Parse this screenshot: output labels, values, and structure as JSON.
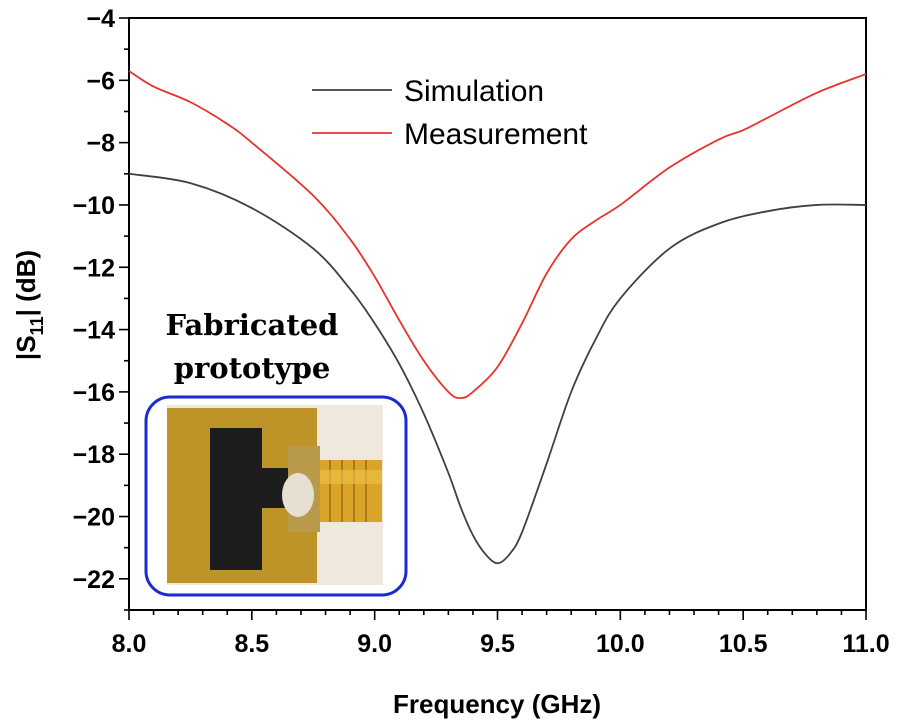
{
  "chart_data": {
    "type": "line",
    "xlabel": "Frequency (GHz)",
    "ylabel_prefix": "|S",
    "ylabel_sub": "11",
    "ylabel_suffix": "|  (dB)",
    "xlim": [
      8.0,
      11.0
    ],
    "ylim": [
      -23,
      -4
    ],
    "x_ticks": [
      "8.0",
      "8.5",
      "9.0",
      "9.5",
      "10.0",
      "10.5",
      "11.0"
    ],
    "y_ticks": [
      "−4",
      "−6",
      "−8",
      "−10",
      "−12",
      "−14",
      "−16",
      "−18",
      "−20",
      "−22"
    ],
    "legend_position": "top-center",
    "grid": false,
    "series": [
      {
        "name": "Simulation",
        "color": "#404040",
        "points": [
          [
            8.0,
            -9.0
          ],
          [
            8.25,
            -9.3
          ],
          [
            8.5,
            -10.1
          ],
          [
            8.75,
            -11.4
          ],
          [
            8.9,
            -12.7
          ],
          [
            9.0,
            -13.8
          ],
          [
            9.1,
            -15.1
          ],
          [
            9.2,
            -16.7
          ],
          [
            9.3,
            -18.6
          ],
          [
            9.35,
            -19.7
          ],
          [
            9.4,
            -20.6
          ],
          [
            9.45,
            -21.2
          ],
          [
            9.5,
            -21.5
          ],
          [
            9.55,
            -21.2
          ],
          [
            9.6,
            -20.5
          ],
          [
            9.7,
            -18.3
          ],
          [
            9.8,
            -16.0
          ],
          [
            9.9,
            -14.3
          ],
          [
            10.0,
            -13.0
          ],
          [
            10.2,
            -11.4
          ],
          [
            10.4,
            -10.6
          ],
          [
            10.6,
            -10.2
          ],
          [
            10.8,
            -10.0
          ],
          [
            11.0,
            -10.0
          ]
        ]
      },
      {
        "name": "Measurement",
        "color": "#e8322c",
        "points": [
          [
            8.0,
            -5.7
          ],
          [
            8.1,
            -6.2
          ],
          [
            8.25,
            -6.7
          ],
          [
            8.4,
            -7.4
          ],
          [
            8.5,
            -8.0
          ],
          [
            8.75,
            -9.7
          ],
          [
            8.9,
            -11.1
          ],
          [
            9.0,
            -12.3
          ],
          [
            9.1,
            -13.7
          ],
          [
            9.2,
            -15.0
          ],
          [
            9.3,
            -16.0
          ],
          [
            9.35,
            -16.2
          ],
          [
            9.4,
            -16.0
          ],
          [
            9.5,
            -15.2
          ],
          [
            9.6,
            -13.8
          ],
          [
            9.7,
            -12.2
          ],
          [
            9.8,
            -11.1
          ],
          [
            9.9,
            -10.5
          ],
          [
            10.0,
            -10.0
          ],
          [
            10.2,
            -8.8
          ],
          [
            10.4,
            -7.9
          ],
          [
            10.5,
            -7.6
          ],
          [
            10.6,
            -7.2
          ],
          [
            10.8,
            -6.4
          ],
          [
            11.0,
            -5.8
          ]
        ]
      }
    ],
    "annotation": {
      "line1": "Fabricated",
      "line2": "prototype",
      "frame_color": "#1a2bd6"
    }
  }
}
